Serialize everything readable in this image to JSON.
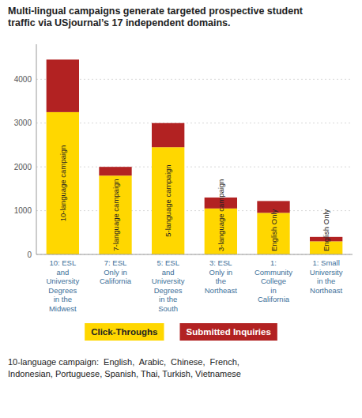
{
  "chart_data": {
    "type": "bar",
    "stacked": true,
    "title": "Multi-lingual campaigns generate targeted prospective student\ntraffic via USjournal’s 17 independent domains.",
    "categories": [
      "10: ESL\nand\nUniversity\nDegrees\nin the\nMidwest",
      "7: ESL\nOnly in\nCalifornia",
      "5: ESL\nand\nUniversity\nDegrees\nin the\nSouth",
      "3: ESL\nOnly in\nthe\nNortheast",
      "1:\nCommunity\nCollege\nin\nCalifornia",
      "1: Small\nUniversity\nin the\nNortheast"
    ],
    "series": [
      {
        "name": "Click-Throughs",
        "color": "#FFD700",
        "values": [
          3250,
          1800,
          2450,
          1050,
          950,
          300
        ]
      },
      {
        "name": "Submitted Inquiries",
        "color": "#B22222",
        "values": [
          1200,
          200,
          550,
          250,
          270,
          100
        ]
      }
    ],
    "annotations": [
      "10-language campaign",
      "7-language campaign",
      "5-language campaign",
      "3-language campaign",
      "English Only",
      "English Only"
    ],
    "footnote": "10-language campaign:  English,  Arabic,  Chinese,  French,\nIndonesian, Portuguese, Spanish, Thai, Turkish, Vietnamese",
    "ylim": [
      0,
      4800
    ],
    "yticks": [
      0,
      1000,
      2000,
      3000,
      4000
    ],
    "grid": true,
    "legend": "bottom"
  }
}
